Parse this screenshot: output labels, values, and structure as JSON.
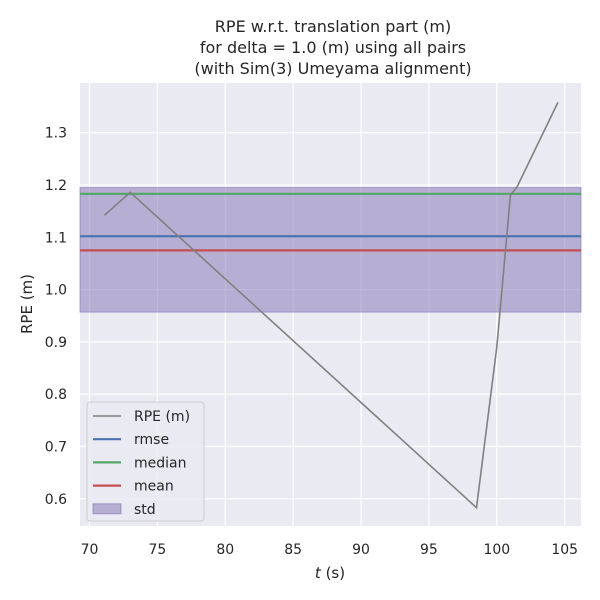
{
  "chart_data": {
    "type": "line",
    "title": [
      "RPE w.r.t. translation part (m)",
      "for delta = 1.0 (m) using all pairs",
      "(with Sim(3) Umeyama alignment)"
    ],
    "xlabel_var": "t",
    "xlabel_unit": " (s)",
    "ylabel": "RPE (m)",
    "xlim": [
      69.3,
      106.2
    ],
    "ylim": [
      0.548,
      1.395
    ],
    "xticks": [
      70,
      75,
      80,
      85,
      90,
      95,
      100,
      105
    ],
    "yticks": [
      0.6,
      0.7,
      0.8,
      0.9,
      1.0,
      1.1,
      1.2,
      1.3
    ],
    "ytick_labels": [
      "0.6",
      "0.7",
      "0.8",
      "0.9",
      "1.0",
      "1.1",
      "1.2",
      "1.3"
    ],
    "grid": true,
    "legend_position": "lower-left",
    "series": [
      {
        "name": "RPE (m)",
        "color": "#808080",
        "x": [
          71.1,
          73.0,
          98.5,
          100.0,
          101.0,
          101.5,
          104.5
        ],
        "y": [
          1.142,
          1.186,
          0.583,
          0.89,
          1.18,
          1.197,
          1.358
        ]
      }
    ],
    "stats": [
      {
        "name": "rmse",
        "value": 1.102,
        "color": "#4c72b0"
      },
      {
        "name": "median",
        "value": 1.183,
        "color": "#55a868"
      },
      {
        "name": "mean",
        "value": 1.075,
        "color": "#c44e52"
      }
    ],
    "std": {
      "name": "std",
      "lower": 0.957,
      "upper": 1.195,
      "color": "#8172b3"
    }
  }
}
